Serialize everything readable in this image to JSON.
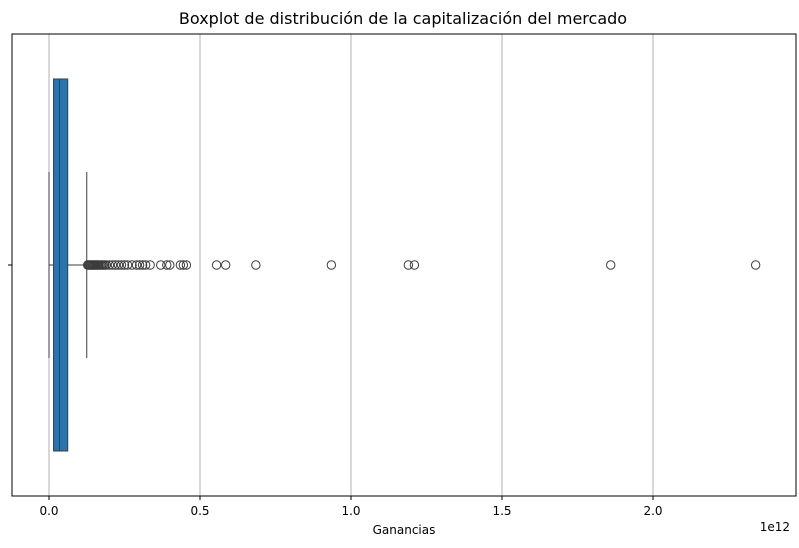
{
  "chart_data": {
    "type": "boxplot",
    "orientation": "horizontal",
    "title": "Boxplot de distribución de la capitalización del mercado",
    "xlabel": "Ganancias",
    "ylabel": "",
    "x_offset_label": "1e12",
    "x_ticks": [
      0.0,
      0.5,
      1.0,
      1.5,
      2.0
    ],
    "x_tick_labels": [
      "0.0",
      "0.5",
      "1.0",
      "1.5",
      "2.0"
    ],
    "xlim": [
      -0.1,
      2.48
    ],
    "grid": "x",
    "box_color": "#2a74ad",
    "box": {
      "whisker_low": 0.0,
      "q1": 0.015,
      "median": 0.035,
      "q3": 0.062,
      "whisker_high": 0.125
    },
    "outliers": [
      0.128,
      0.131,
      0.134,
      0.137,
      0.14,
      0.143,
      0.146,
      0.149,
      0.152,
      0.155,
      0.158,
      0.161,
      0.164,
      0.168,
      0.172,
      0.176,
      0.18,
      0.185,
      0.19,
      0.2,
      0.21,
      0.22,
      0.23,
      0.24,
      0.25,
      0.26,
      0.275,
      0.29,
      0.3,
      0.31,
      0.32,
      0.335,
      0.37,
      0.39,
      0.4,
      0.435,
      0.445,
      0.455,
      0.555,
      0.585,
      0.685,
      0.935,
      1.19,
      1.21,
      1.86,
      2.34
    ]
  }
}
